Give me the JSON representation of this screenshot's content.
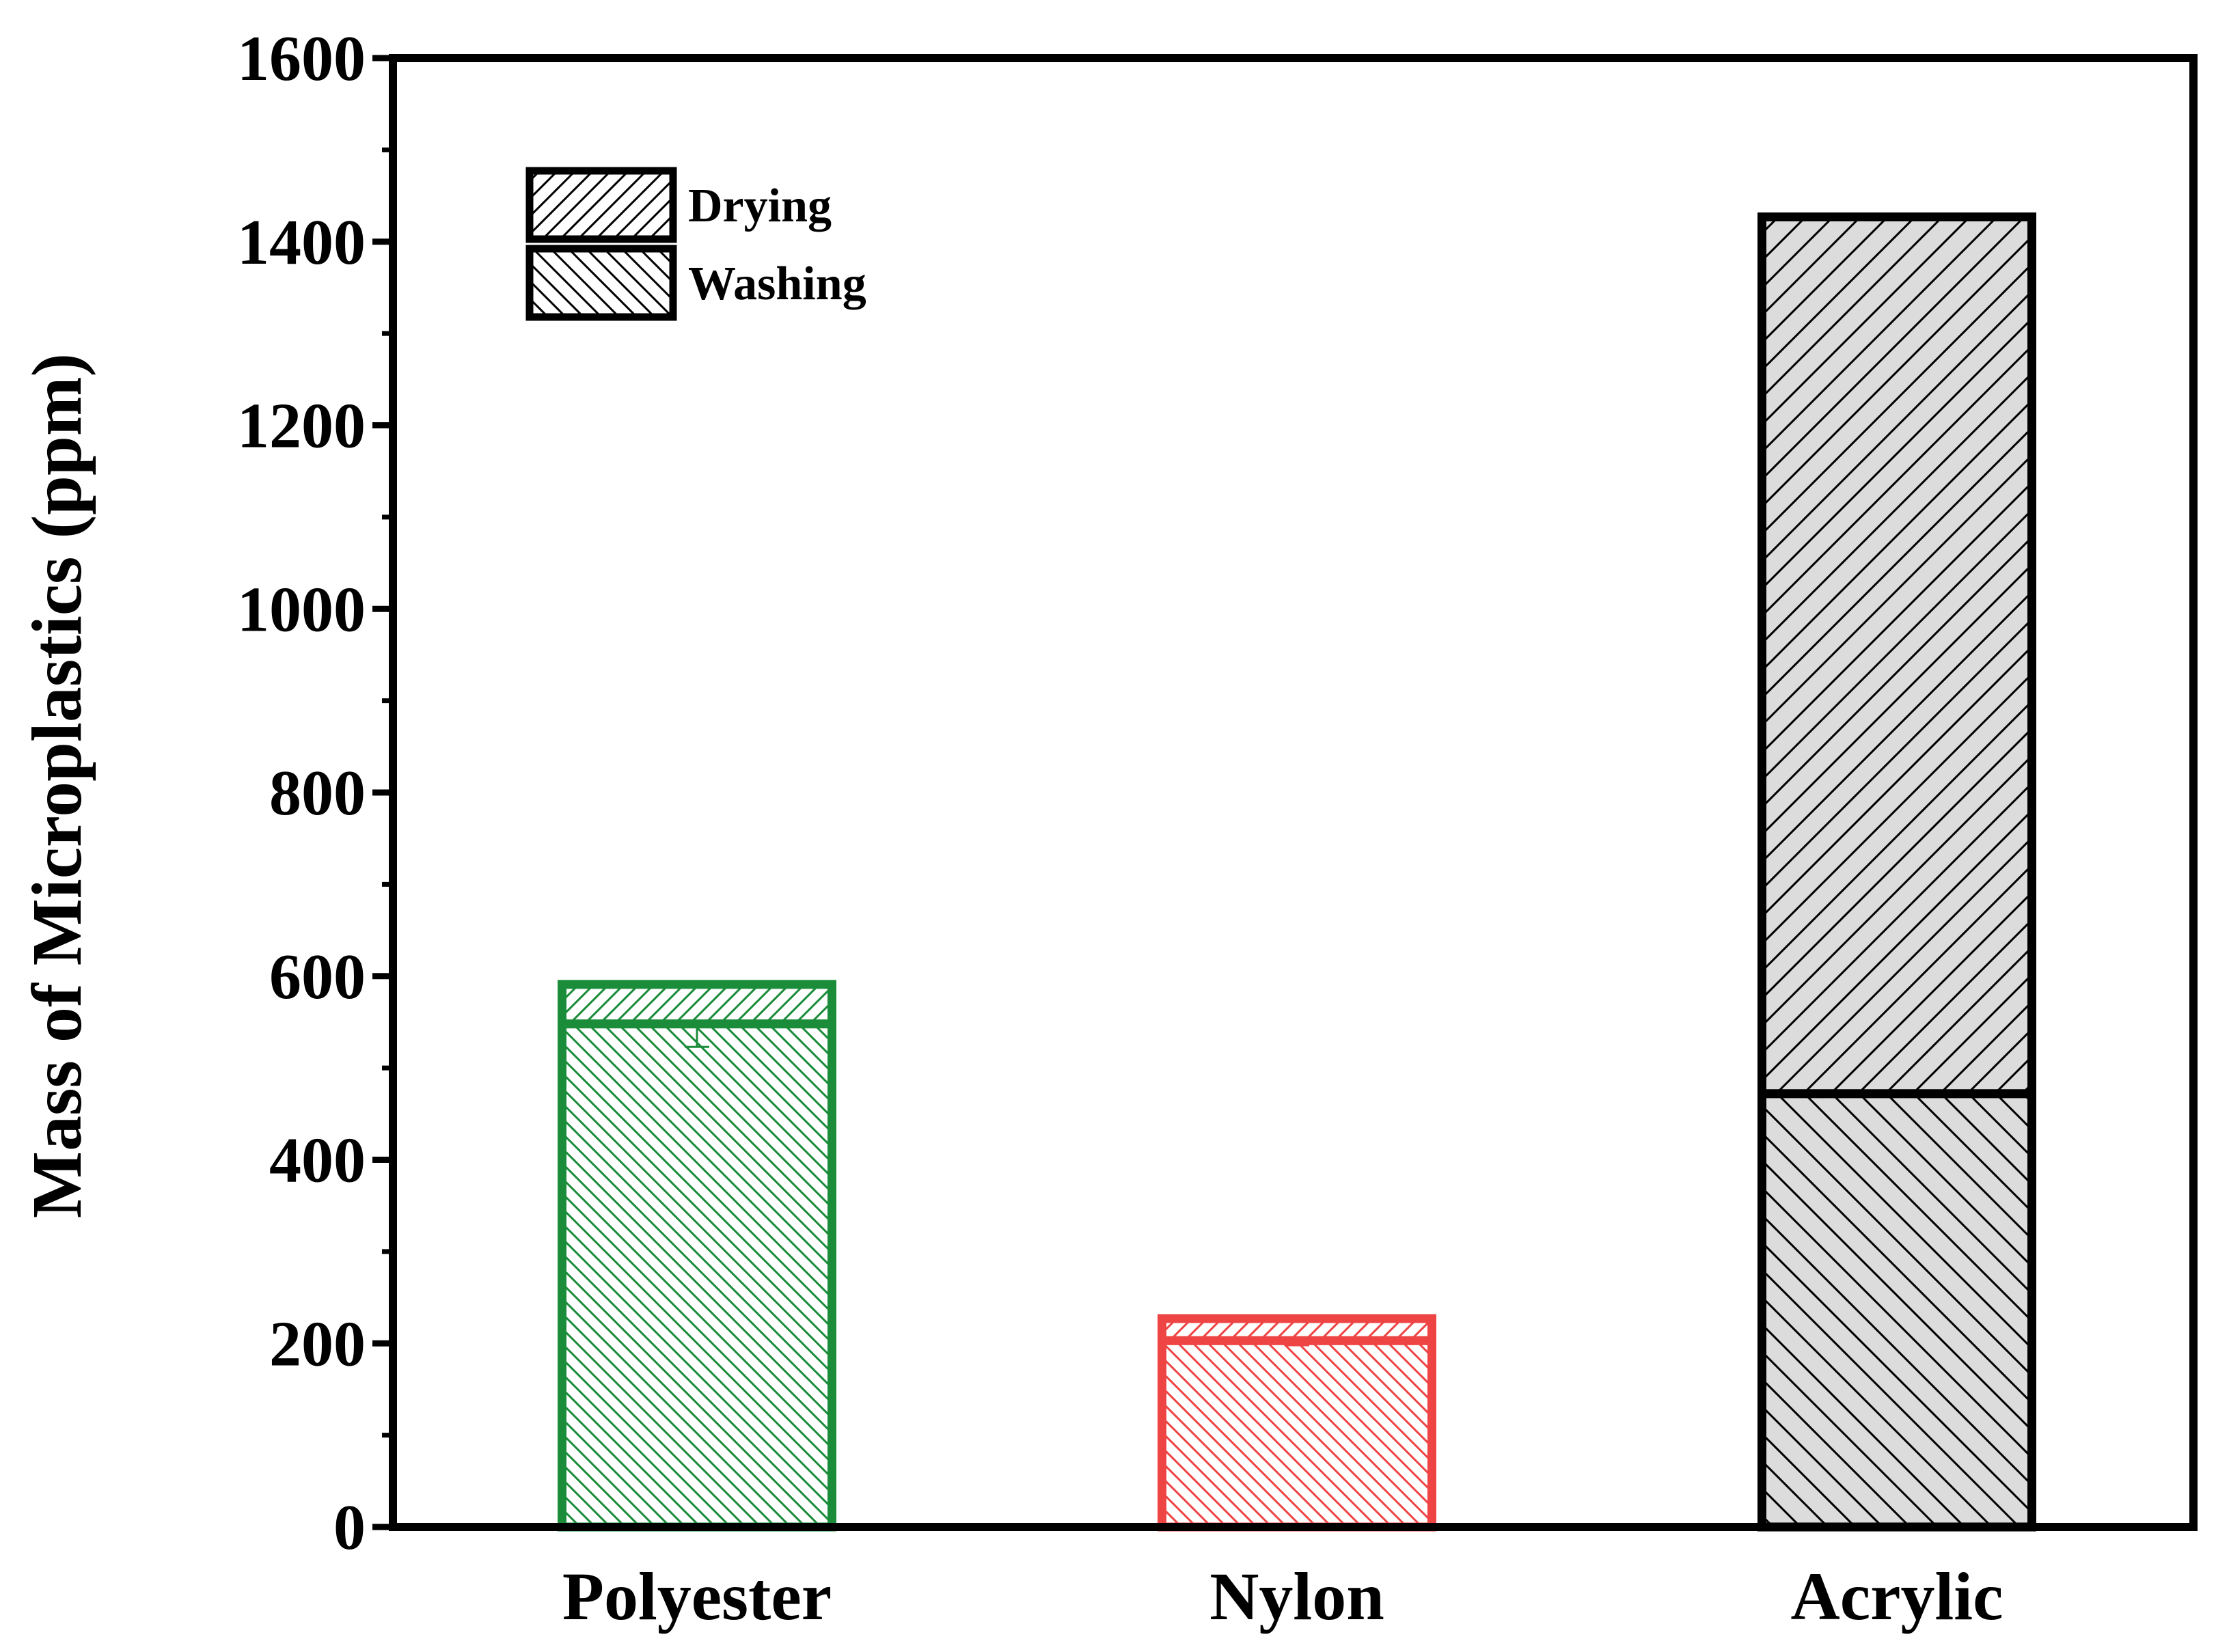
{
  "chart_data": {
    "type": "bar",
    "stacked": true,
    "categories": [
      "Polyester",
      "Nylon",
      "Acrylic"
    ],
    "series": [
      {
        "name": "Washing",
        "values": [
          548,
          203,
          472
        ],
        "errors": [
          25,
          5,
          3
        ],
        "pattern": "backslash-hatch"
      },
      {
        "name": "Drying",
        "values": [
          43,
          24,
          955
        ],
        "errors": [
          2,
          2,
          2
        ],
        "pattern": "slash-hatch"
      }
    ],
    "bar_colors": [
      "#1a8c3a",
      "#ef4444",
      "#000000"
    ],
    "bar_fills": [
      "#ffffff",
      "#ffffff",
      "#dcdcdc"
    ],
    "title": "",
    "xlabel": "",
    "ylabel": "Mass of Microplastics (ppm)",
    "ylim": [
      0,
      1600
    ],
    "yticks": [
      "0",
      "200",
      "400",
      "600",
      "800",
      "1000",
      "1200",
      "1400",
      "1600"
    ],
    "grid": false,
    "legend": {
      "placement": "top-left",
      "order": [
        "Drying",
        "Washing"
      ]
    }
  }
}
